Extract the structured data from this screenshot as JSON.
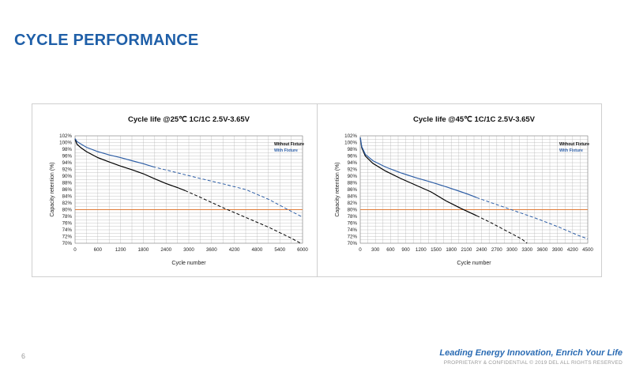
{
  "slide": {
    "title": "CYCLE PERFORMANCE",
    "page_number": "6",
    "tagline": "Leading Energy Innovation, Enrich Your Life",
    "rights": "PROPRIETARY & CONFIDENTIAL © 2019 DEL ALL RIGHTS RESERVED"
  },
  "colors": {
    "title": "#1f5fa8",
    "without_fixture": "#000000",
    "with_fixture": "#2f5fa6",
    "reference_line": "#e07b39"
  },
  "chart_data": [
    {
      "type": "line",
      "title": "Cycle life @25℃ 1C/1C 2.5V-3.65V",
      "xlabel": "Cycle number",
      "ylabel": "Capacity retention (%)",
      "xlim": [
        0,
        6000
      ],
      "ylim": [
        70,
        102
      ],
      "xticks": [
        0,
        600,
        1200,
        1800,
        2400,
        3000,
        3600,
        4200,
        4800,
        5400,
        6000
      ],
      "yticks": [
        "70%",
        "72%",
        "74%",
        "76%",
        "78%",
        "80%",
        "82%",
        "84%",
        "86%",
        "88%",
        "90%",
        "92%",
        "94%",
        "96%",
        "98%",
        "100%",
        "102%"
      ],
      "grid": true,
      "legend_position": "top-right",
      "reference_line_y": 80,
      "series": [
        {
          "name": "Without Fixture",
          "measured": [
            [
              0,
              101
            ],
            [
              50,
              99.5
            ],
            [
              150,
              98.5
            ],
            [
              300,
              97.3
            ],
            [
              600,
              95.5
            ],
            [
              900,
              94.2
            ],
            [
              1200,
              93
            ],
            [
              1500,
              91.9
            ],
            [
              1800,
              90.7
            ],
            [
              2100,
              89.2
            ],
            [
              2400,
              87.8
            ],
            [
              2700,
              86.6
            ],
            [
              2900,
              85.7
            ]
          ],
          "projected": [
            [
              2900,
              85.7
            ],
            [
              3300,
              83.7
            ],
            [
              3900,
              80.6
            ],
            [
              4500,
              77.7
            ],
            [
              5100,
              74.8
            ],
            [
              5700,
              71.5
            ],
            [
              5950,
              70
            ]
          ]
        },
        {
          "name": "With Fixture",
          "measured": [
            [
              0,
              101.2
            ],
            [
              50,
              100.3
            ],
            [
              150,
              99.6
            ],
            [
              300,
              98.6
            ],
            [
              600,
              97.3
            ],
            [
              900,
              96.3
            ],
            [
              1200,
              95.5
            ],
            [
              1500,
              94.6
            ],
            [
              1800,
              93.7
            ],
            [
              2050,
              92.8
            ]
          ],
          "projected": [
            [
              2050,
              92.8
            ],
            [
              2700,
              91
            ],
            [
              3300,
              89.3
            ],
            [
              3900,
              87.7
            ],
            [
              4500,
              86
            ],
            [
              5100,
              83.1
            ],
            [
              5700,
              79.5
            ],
            [
              6000,
              77.8
            ]
          ]
        }
      ]
    },
    {
      "type": "line",
      "title": "Cycle life @45℃ 1C/1C 2.5V-3.65V",
      "xlabel": "Cycle number",
      "ylabel": "Capacity retention (%)",
      "xlim": [
        0,
        4500
      ],
      "ylim": [
        70,
        102
      ],
      "xticks": [
        0,
        300,
        600,
        900,
        1200,
        1500,
        1800,
        2100,
        2400,
        2700,
        3000,
        3300,
        3600,
        3900,
        4200,
        4500
      ],
      "yticks": [
        "70%",
        "72%",
        "74%",
        "76%",
        "78%",
        "80%",
        "82%",
        "84%",
        "86%",
        "88%",
        "90%",
        "92%",
        "94%",
        "96%",
        "98%",
        "100%",
        "102%"
      ],
      "grid": true,
      "legend_position": "top-right",
      "reference_line_y": 80,
      "series": [
        {
          "name": "Without Fixture",
          "measured": [
            [
              0,
              101.5
            ],
            [
              30,
              98.5
            ],
            [
              100,
              96
            ],
            [
              250,
              93.8
            ],
            [
              500,
              91.5
            ],
            [
              800,
              89.3
            ],
            [
              1100,
              87.3
            ],
            [
              1400,
              85.3
            ],
            [
              1700,
              82.6
            ],
            [
              2000,
              80.3
            ],
            [
              2300,
              78.2
            ]
          ],
          "projected": [
            [
              2300,
              78.2
            ],
            [
              2600,
              76
            ],
            [
              2900,
              73.6
            ],
            [
              3200,
              71.2
            ],
            [
              3300,
              70
            ]
          ]
        },
        {
          "name": "With Fixture",
          "measured": [
            [
              0,
              101.5
            ],
            [
              30,
              98.8
            ],
            [
              100,
              96.5
            ],
            [
              250,
              94.6
            ],
            [
              500,
              92.7
            ],
            [
              800,
              91
            ],
            [
              1100,
              89.5
            ],
            [
              1400,
              88.2
            ],
            [
              1700,
              86.8
            ],
            [
              2000,
              85.3
            ],
            [
              2200,
              84.2
            ],
            [
              2300,
              83.6
            ]
          ],
          "projected": [
            [
              2300,
              83.6
            ],
            [
              2700,
              81.5
            ],
            [
              3100,
              79.4
            ],
            [
              3500,
              77.3
            ],
            [
              3900,
              75
            ],
            [
              4300,
              72.4
            ],
            [
              4500,
              71.3
            ]
          ]
        }
      ]
    }
  ]
}
